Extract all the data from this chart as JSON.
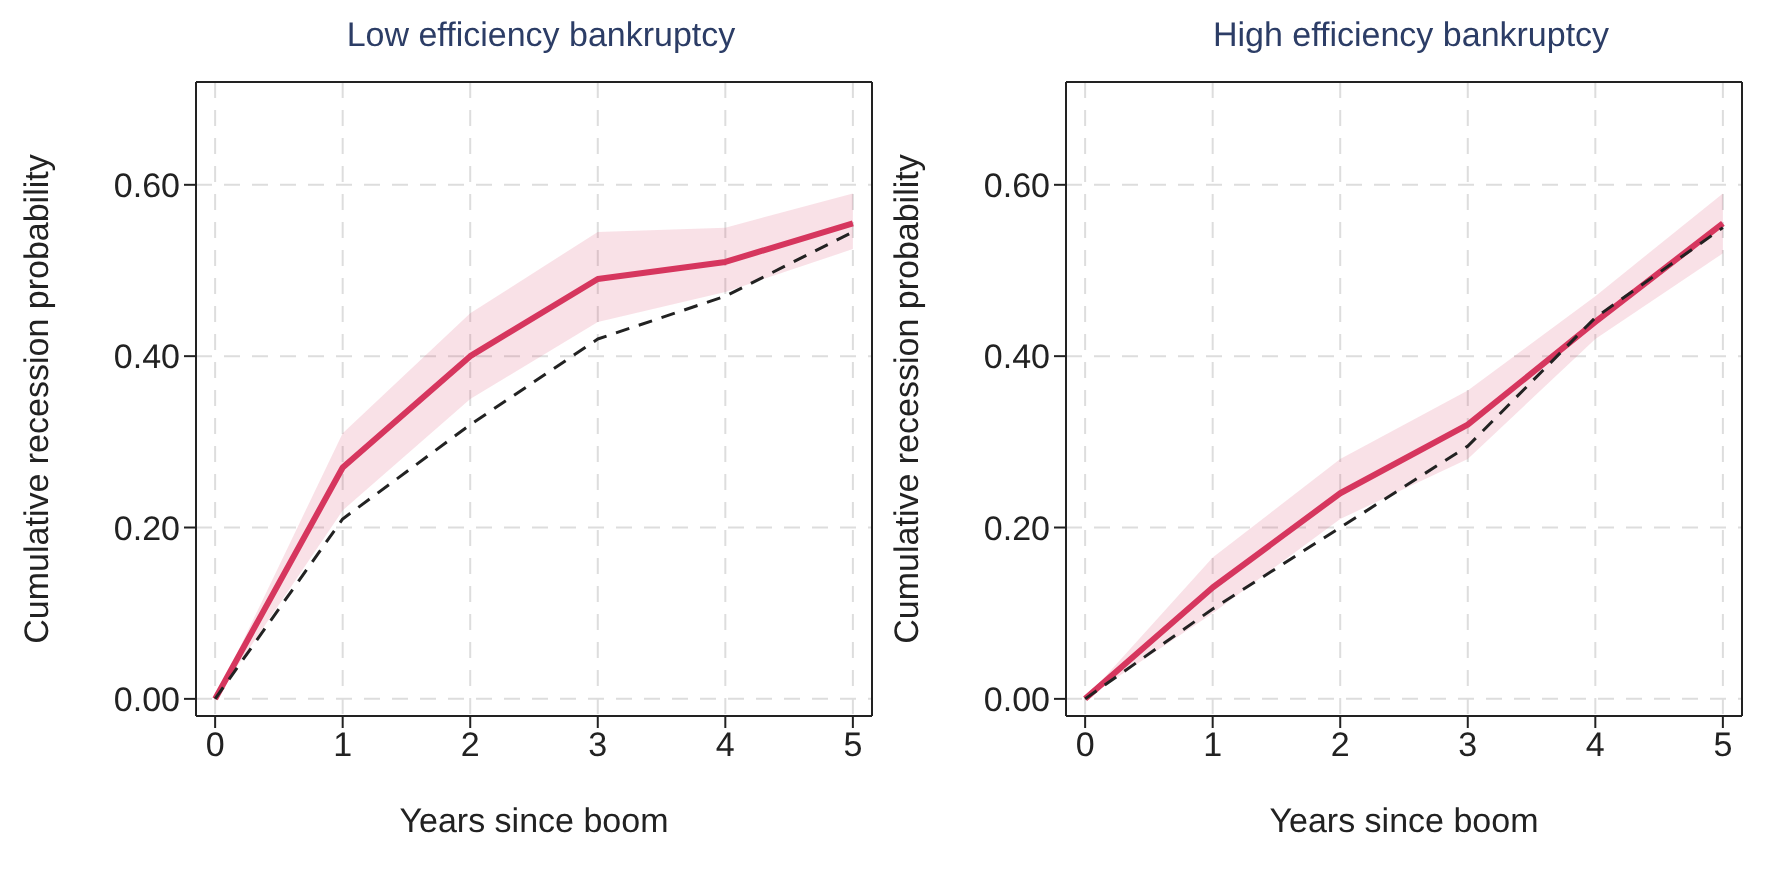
{
  "chart_data": [
    {
      "type": "line",
      "title": "Low efficiency bankruptcy",
      "xlabel": "Years since boom",
      "ylabel": "Cumulative recession probability",
      "x": [
        0,
        1,
        2,
        3,
        4,
        5
      ],
      "xlim": [
        -0.15,
        5.15
      ],
      "xticks": [
        0,
        1,
        2,
        3,
        4,
        5
      ],
      "ylim": [
        -0.02,
        0.72
      ],
      "yticks": [
        {
          "value": 0,
          "label": "0.00"
        },
        {
          "value": 0.2,
          "label": "0.20"
        },
        {
          "value": 0.4,
          "label": "0.40"
        },
        {
          "value": 0.6,
          "label": "0.60"
        }
      ],
      "grid": true,
      "legend": false,
      "series": [
        {
          "color": "#d6365e",
          "line_style": "solid",
          "values": [
            0,
            0.27,
            0.4,
            0.49,
            0.51,
            0.555
          ],
          "lower": [
            0,
            0.22,
            0.35,
            0.44,
            0.475,
            0.525
          ],
          "upper": [
            0,
            0.31,
            0.45,
            0.545,
            0.55,
            0.59
          ]
        },
        {
          "color": "#222222",
          "line_style": "dashed",
          "values": [
            0,
            0.21,
            0.32,
            0.42,
            0.47,
            0.545
          ]
        }
      ]
    },
    {
      "type": "line",
      "title": "High efficiency bankruptcy",
      "xlabel": "Years since boom",
      "ylabel": "Cumulative recession probability",
      "x": [
        0,
        1,
        2,
        3,
        4,
        5
      ],
      "xlim": [
        -0.15,
        5.15
      ],
      "xticks": [
        0,
        1,
        2,
        3,
        4,
        5
      ],
      "ylim": [
        -0.02,
        0.72
      ],
      "yticks": [
        {
          "value": 0,
          "label": "0.00"
        },
        {
          "value": 0.2,
          "label": "0.20"
        },
        {
          "value": 0.4,
          "label": "0.40"
        },
        {
          "value": 0.6,
          "label": "0.60"
        }
      ],
      "grid": true,
      "legend": false,
      "series": [
        {
          "color": "#d6365e",
          "line_style": "solid",
          "values": [
            0,
            0.13,
            0.24,
            0.32,
            0.44,
            0.555
          ],
          "lower": [
            0,
            0.1,
            0.21,
            0.28,
            0.42,
            0.52
          ],
          "upper": [
            0,
            0.165,
            0.28,
            0.36,
            0.47,
            0.59
          ]
        },
        {
          "color": "#222222",
          "line_style": "dashed",
          "values": [
            0,
            0.105,
            0.2,
            0.295,
            0.445,
            0.55
          ]
        }
      ]
    }
  ]
}
